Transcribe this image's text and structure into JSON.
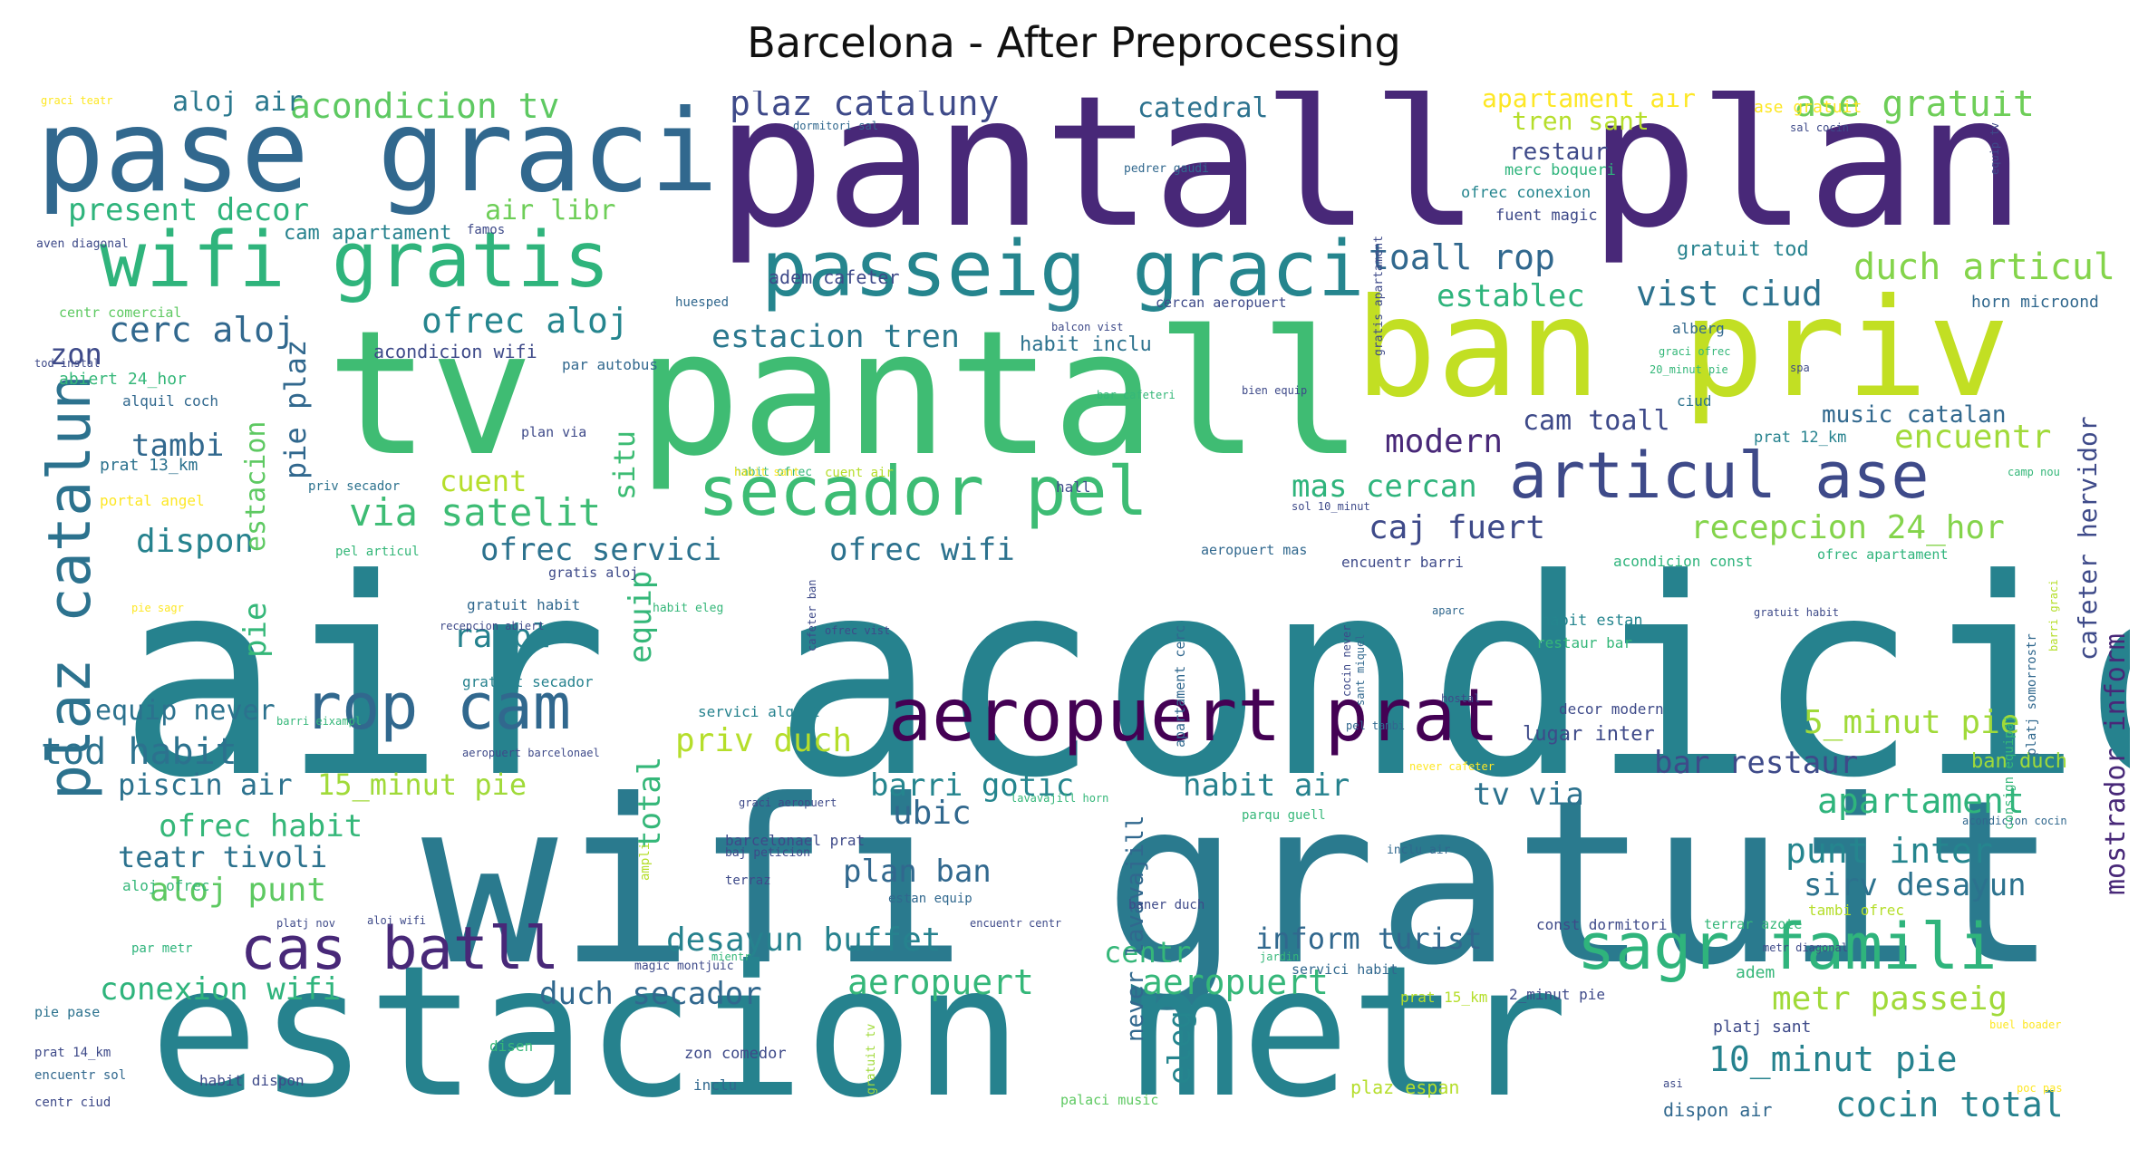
{
  "title": "Barcelona - After Preprocessing",
  "palette": {
    "purple": "#482878",
    "deep_purple": "#3b1b5c",
    "indigo": "#3e4a89",
    "blue": "#31688e",
    "teal": "#26828e",
    "green_teal": "#1f9e89",
    "green": "#35b779",
    "light_green": "#6ece58",
    "yellow_green": "#b5de2b",
    "yellow": "#fde725"
  },
  "words": [
    {
      "text": "air acondicion",
      "color": "#26828e"
    },
    {
      "text": "wifi gratuit",
      "color": "#2a7a8e"
    },
    {
      "text": "estacion metr",
      "color": "#26828e"
    },
    {
      "text": "pantall plan",
      "color": "#482878"
    },
    {
      "text": "tv pantall",
      "color": "#3fbc73"
    },
    {
      "text": "ban priv",
      "color": "#c2df23"
    },
    {
      "text": "pase graci",
      "color": "#31688e"
    },
    {
      "text": "wifi gratis",
      "color": "#2fb47c"
    },
    {
      "text": "passeig graci",
      "color": "#25858e"
    },
    {
      "text": "aeropuert prat",
      "color": "#440154"
    },
    {
      "text": "rop cam",
      "color": "#31688e"
    },
    {
      "text": "secador pel",
      "color": "#3dbc74"
    },
    {
      "text": "articul ase",
      "color": "#3e4a89"
    },
    {
      "text": "sagr famili",
      "color": "#2fb47c"
    },
    {
      "text": "cas batll",
      "color": "#482878"
    },
    {
      "text": "plaz catalun",
      "color": "#2c728e"
    },
    {
      "text": "ofrec aloj",
      "color": "#25858e"
    },
    {
      "text": "via satelit",
      "color": "#3dbc74"
    },
    {
      "text": "cerc aloj",
      "color": "#31688e"
    },
    {
      "text": "estacion tren",
      "color": "#2a788e"
    },
    {
      "text": "plaz cataluny",
      "color": "#3e4a89"
    },
    {
      "text": "acondicion tv",
      "color": "#5ec962"
    },
    {
      "text": "present decor",
      "color": "#2fb47c"
    },
    {
      "text": "aloj air",
      "color": "#2a788e"
    },
    {
      "text": "catedral",
      "color": "#2c728e"
    },
    {
      "text": "apartament air",
      "color": "#fde725"
    },
    {
      "text": "ase gratuit",
      "color": "#6ece58"
    },
    {
      "text": "tren sant",
      "color": "#b5de2b"
    },
    {
      "text": "restaur",
      "color": "#3e4a89"
    },
    {
      "text": "toall rop",
      "color": "#31688e"
    },
    {
      "text": "duch articul",
      "color": "#84d44b"
    },
    {
      "text": "establec",
      "color": "#2fb47c"
    },
    {
      "text": "vist ciud",
      "color": "#2c728e"
    },
    {
      "text": "gratuit tod",
      "color": "#26828e"
    },
    {
      "text": "encuentr",
      "color": "#a0da39"
    },
    {
      "text": "modern",
      "color": "#482878"
    },
    {
      "text": "cam toall",
      "color": "#3e4a89"
    },
    {
      "text": "music catalan",
      "color": "#31688e"
    },
    {
      "text": "mas cercan",
      "color": "#2fb47c"
    },
    {
      "text": "caj fuert",
      "color": "#3e4a89"
    },
    {
      "text": "recepcion 24_hor",
      "color": "#84d44b"
    },
    {
      "text": "ofrec servici",
      "color": "#2c728e"
    },
    {
      "text": "ofrec wifi",
      "color": "#2c728e"
    },
    {
      "text": "rambl",
      "color": "#26828e"
    },
    {
      "text": "dispon",
      "color": "#26828e"
    },
    {
      "text": "tambi",
      "color": "#31688e"
    },
    {
      "text": "cuent",
      "color": "#b5de2b"
    },
    {
      "text": "zon",
      "color": "#3e4a89"
    },
    {
      "text": "pie plaz",
      "color": "#31688e"
    },
    {
      "text": "estacion",
      "color": "#5ec962"
    },
    {
      "text": "situ",
      "color": "#3dbc74"
    },
    {
      "text": "equip",
      "color": "#35b779"
    },
    {
      "text": "pie",
      "color": "#35b779"
    },
    {
      "text": "equip never",
      "color": "#2c728e"
    },
    {
      "text": "tod habit",
      "color": "#2c728e"
    },
    {
      "text": "piscin air",
      "color": "#2c728e"
    },
    {
      "text": "15_minut pie",
      "color": "#a0da39"
    },
    {
      "text": "priv duch",
      "color": "#b5de2b"
    },
    {
      "text": "barri gotic",
      "color": "#25858e"
    },
    {
      "text": "ubic",
      "color": "#31688e"
    },
    {
      "text": "habit air",
      "color": "#26828e"
    },
    {
      "text": "tv via",
      "color": "#2c728e"
    },
    {
      "text": "bar restaur",
      "color": "#3e4a89"
    },
    {
      "text": "5_minut pie",
      "color": "#a0da39"
    },
    {
      "text": "apartament",
      "color": "#2fb47c"
    },
    {
      "text": "punt inter",
      "color": "#25858e"
    },
    {
      "text": "sirv desayun",
      "color": "#2c728e"
    },
    {
      "text": "ofrec habit",
      "color": "#35b779"
    },
    {
      "text": "teatr tivoli",
      "color": "#2c728e"
    },
    {
      "text": "aloj punt",
      "color": "#5ec962"
    },
    {
      "text": "plan ban",
      "color": "#31688e"
    },
    {
      "text": "desayun buffet",
      "color": "#26828e"
    },
    {
      "text": "conexion wifi",
      "color": "#2fb47c"
    },
    {
      "text": "duch secador",
      "color": "#31688e"
    },
    {
      "text": "aeropuert",
      "color": "#35b779"
    },
    {
      "text": "aeropuert",
      "color": "#35b779"
    },
    {
      "text": "centr",
      "color": "#35b779"
    },
    {
      "text": "inform turist",
      "color": "#31688e"
    },
    {
      "text": "metr passeig",
      "color": "#a0da39"
    },
    {
      "text": "10_minut pie",
      "color": "#26828e"
    },
    {
      "text": "cocin total",
      "color": "#26828e"
    },
    {
      "text": "total",
      "color": "#35b779"
    },
    {
      "text": "eleg",
      "color": "#25858e"
    },
    {
      "text": "never lavavajill",
      "color": "#31688e"
    },
    {
      "text": "mostrador inform",
      "color": "#482878"
    },
    {
      "text": "cafeter hervidor",
      "color": "#3e4a89"
    },
    {
      "text": "air libr",
      "color": "#6ece58"
    },
    {
      "text": "cam apartament",
      "color": "#26828e"
    },
    {
      "text": "adem cafeter",
      "color": "#3e4a89"
    },
    {
      "text": "habit inclu",
      "color": "#2c728e"
    },
    {
      "text": "acondicion wifi",
      "color": "#3e4a89"
    },
    {
      "text": "par autobus",
      "color": "#31688e"
    },
    {
      "text": "merc boqueri",
      "color": "#2fb47c"
    },
    {
      "text": "ofrec conexion",
      "color": "#25858e"
    },
    {
      "text": "fuent magic",
      "color": "#3e4a89"
    },
    {
      "text": "horn microond",
      "color": "#31688e"
    },
    {
      "text": "alberg",
      "color": "#31688e"
    },
    {
      "text": "ciud",
      "color": "#2c728e"
    },
    {
      "text": "prat 12_km",
      "color": "#26828e"
    },
    {
      "text": "hall",
      "color": "#3e4a89"
    },
    {
      "text": "acondicion const",
      "color": "#2fb47c"
    },
    {
      "text": "encuentr barri",
      "color": "#3e4a89"
    },
    {
      "text": "aeropuert mas",
      "color": "#31688e"
    },
    {
      "text": "ofrec apartament",
      "color": "#2fb47c"
    },
    {
      "text": "habit estan",
      "color": "#25858e"
    },
    {
      "text": "restaur bar",
      "color": "#35b779"
    },
    {
      "text": "lugar inter",
      "color": "#3e4a89"
    },
    {
      "text": "decor modern",
      "color": "#3e4a89"
    },
    {
      "text": "ban duch",
      "color": "#a0da39"
    },
    {
      "text": "prat 13_km",
      "color": "#2c728e"
    },
    {
      "text": "portal angel",
      "color": "#fde725"
    },
    {
      "text": "gratuit habit",
      "color": "#31688e"
    },
    {
      "text": "gratuit secador",
      "color": "#26828e"
    },
    {
      "text": "servici alquil",
      "color": "#26828e"
    },
    {
      "text": "alquil coch",
      "color": "#31688e"
    },
    {
      "text": "abiert 24_hor",
      "color": "#35b779"
    },
    {
      "text": "centr comercial",
      "color": "#5ec962"
    },
    {
      "text": "aven diagonal",
      "color": "#3e4a89"
    },
    {
      "text": "famos",
      "color": "#3e4a89"
    },
    {
      "text": "huesped",
      "color": "#31688e"
    },
    {
      "text": "plan via",
      "color": "#3e4a89"
    },
    {
      "text": "priv secador",
      "color": "#2c728e"
    },
    {
      "text": "pel articul",
      "color": "#35b779"
    },
    {
      "text": "aloj ofrec",
      "color": "#35b779"
    },
    {
      "text": "par metr",
      "color": "#2fb47c"
    },
    {
      "text": "pie pase",
      "color": "#2c728e"
    },
    {
      "text": "prat 14_km",
      "color": "#3e4a89"
    },
    {
      "text": "encuentr sol",
      "color": "#31688e"
    },
    {
      "text": "centr ciud",
      "color": "#3e4a89"
    },
    {
      "text": "habit dispon",
      "color": "#3e4a89"
    },
    {
      "text": "disen",
      "color": "#35b779"
    },
    {
      "text": "zon comedor",
      "color": "#3e4a89"
    },
    {
      "text": "inclu",
      "color": "#31688e"
    },
    {
      "text": "palaci music",
      "color": "#5ec962"
    },
    {
      "text": "plaz espan",
      "color": "#b5de2b"
    },
    {
      "text": "dispon air",
      "color": "#31688e"
    },
    {
      "text": "platj sant",
      "color": "#3e4a89"
    },
    {
      "text": "adem",
      "color": "#35b779"
    },
    {
      "text": "prat 15_km",
      "color": "#b5de2b"
    },
    {
      "text": "2_minut pie",
      "color": "#3e4a89"
    },
    {
      "text": "servici habit",
      "color": "#31688e"
    },
    {
      "text": "const dormitori",
      "color": "#3e4a89"
    },
    {
      "text": "terrar azote",
      "color": "#35b779"
    },
    {
      "text": "estan equip",
      "color": "#31688e"
    },
    {
      "text": "baner duch",
      "color": "#3e4a89"
    },
    {
      "text": "tambi ofrec",
      "color": "#b5de2b"
    },
    {
      "text": "gratuit tv",
      "color": "#a0da39"
    },
    {
      "text": "cuent air",
      "color": "#b5de2b"
    },
    {
      "text": "habit ofrec",
      "color": "#35b779"
    },
    {
      "text": "ase gratuit",
      "color": "#fde725"
    },
    {
      "text": "graci teatr",
      "color": "#fde725"
    },
    {
      "text": "dormitori sal",
      "color": "#31688e"
    },
    {
      "text": "sal cocin",
      "color": "#3e4a89"
    },
    {
      "text": "pedrer gaudi",
      "color": "#31688e"
    },
    {
      "text": "cercan aeropuert",
      "color": "#3e4a89"
    },
    {
      "text": "balcon vist",
      "color": "#3e4a89"
    },
    {
      "text": "bar cafeteri",
      "color": "#35b779"
    },
    {
      "text": "bien equip",
      "color": "#3e4a89"
    },
    {
      "text": "graci ofrec",
      "color": "#35b779"
    },
    {
      "text": "20_minut pie",
      "color": "#35b779"
    },
    {
      "text": "spa",
      "color": "#3e4a89"
    },
    {
      "text": "camp nou",
      "color": "#35b779"
    },
    {
      "text": "gratis apartament",
      "color": "#3e4a89"
    },
    {
      "text": "apartament cerc",
      "color": "#31688e"
    },
    {
      "text": "cafeter ban",
      "color": "#3e4a89"
    },
    {
      "text": "sant miquel",
      "color": "#31688e"
    },
    {
      "text": "aparc",
      "color": "#31688e"
    },
    {
      "text": "hostal",
      "color": "#3e4a89"
    },
    {
      "text": "pel tambi",
      "color": "#31688e"
    },
    {
      "text": "never cafeter",
      "color": "#fde725"
    },
    {
      "text": "cocin never",
      "color": "#3e4a89"
    },
    {
      "text": "lavavajill horn",
      "color": "#35b779"
    },
    {
      "text": "parqu guell",
      "color": "#35b779"
    },
    {
      "text": "acondicion cocin",
      "color": "#31688e"
    },
    {
      "text": "metr diagonal",
      "color": "#3e4a89"
    },
    {
      "text": "inclu air",
      "color": "#31688e"
    },
    {
      "text": "barcelonael prat",
      "color": "#3e4a89"
    },
    {
      "text": "graci aeropuert",
      "color": "#3e4a89"
    },
    {
      "text": "baj peticion",
      "color": "#3e4a89"
    },
    {
      "text": "terraz",
      "color": "#3e4a89"
    },
    {
      "text": "ampli",
      "color": "#b5de2b"
    },
    {
      "text": "magic montjuic",
      "color": "#3e4a89"
    },
    {
      "text": "mientr",
      "color": "#35b779"
    },
    {
      "text": "jardin",
      "color": "#35b779"
    },
    {
      "text": "platj somorrostr",
      "color": "#31688e"
    },
    {
      "text": "consign equipaj",
      "color": "#35b779"
    },
    {
      "text": "barri graci",
      "color": "#b5de2b"
    },
    {
      "text": "buel boader",
      "color": "#fde725"
    },
    {
      "text": "poc pas",
      "color": "#fde725"
    },
    {
      "text": "asi",
      "color": "#3e4a89"
    },
    {
      "text": "habit sant",
      "color": "#fde725"
    },
    {
      "text": "recepcion abiert",
      "color": "#3e4a89"
    },
    {
      "text": "gratis aloj",
      "color": "#3e4a89"
    },
    {
      "text": "habit eleg",
      "color": "#35b779"
    },
    {
      "text": "ofrec vist",
      "color": "#3e4a89"
    },
    {
      "text": "barri eixampl",
      "color": "#35b779"
    },
    {
      "text": "aeropuert barcelonael",
      "color": "#3e4a89"
    },
    {
      "text": "platj nov",
      "color": "#3e4a89"
    },
    {
      "text": "aloj wifi",
      "color": "#3e4a89"
    },
    {
      "text": "pie sagr",
      "color": "#fde725"
    },
    {
      "text": "tod instal",
      "color": "#3e4a89"
    },
    {
      "text": "encuentr centr",
      "color": "#3e4a89"
    },
    {
      "text": "sol 10_minut",
      "color": "#3e4a89"
    },
    {
      "text": "equip tv",
      "color": "#3e4a89"
    },
    {
      "text": "gratuit habit",
      "color": "#3e4a89"
    }
  ]
}
